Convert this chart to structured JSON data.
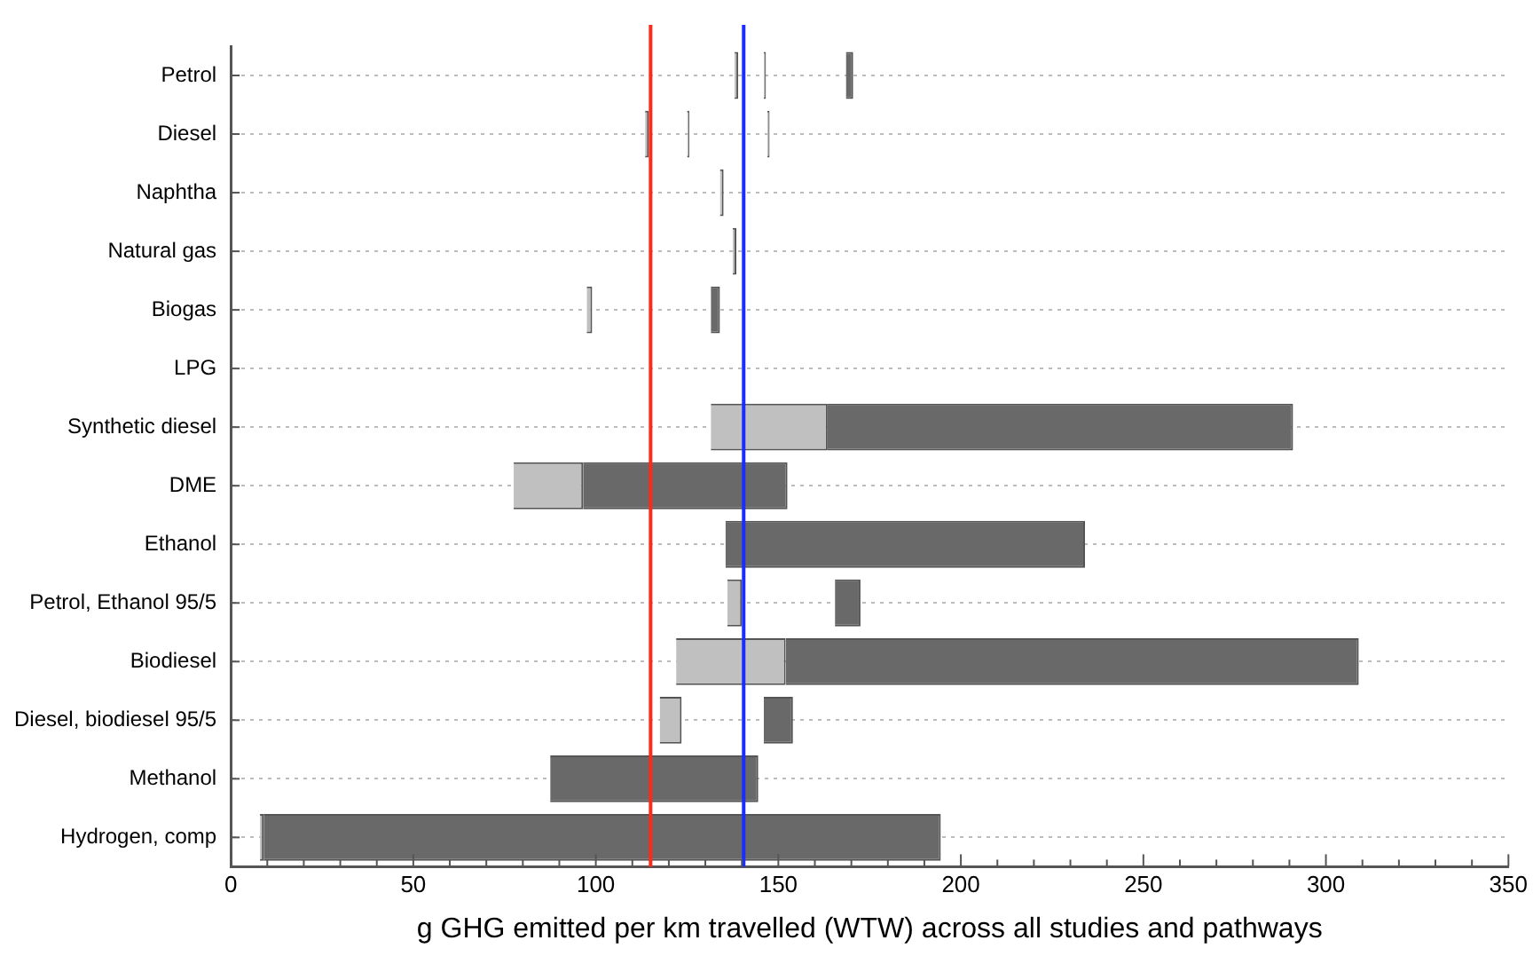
{
  "chart_data": {
    "type": "bar",
    "orientation": "horizontal",
    "xlabel": "g GHG emitted per km travelled (WTW) across all studies and pathways",
    "categories": [
      "Petrol",
      "Diesel",
      "Naphtha",
      "Natural gas",
      "Biogas",
      "LPG",
      "Synthetic diesel",
      "DME",
      "Ethanol",
      "Petrol, Ethanol 95/5",
      "Biodiesel",
      "Diesel, biodiesel 95/5",
      "Methanol",
      "Hydrogen, comp"
    ],
    "series": [
      {
        "color": "#c0c0c0",
        "base": [
          138,
          113.5,
          134,
          137.5,
          97.5,
          null,
          131.5,
          77.5,
          null,
          136,
          122,
          117.5,
          null,
          8
        ],
        "values": [
          1,
          1,
          1,
          1,
          1.5,
          null,
          32,
          19,
          null,
          4,
          30,
          6,
          null,
          1
        ]
      },
      {
        "color": "#c0c0c0",
        "base": [
          146,
          125,
          null,
          null,
          null,
          null,
          null,
          null,
          null,
          null,
          null,
          null,
          null,
          null
        ],
        "values": [
          0.6,
          0.6,
          null,
          null,
          null,
          null,
          null,
          null,
          null,
          null,
          null,
          null,
          null,
          null
        ]
      },
      {
        "color": "#c0c0c0",
        "base": [
          null,
          147,
          null,
          null,
          null,
          null,
          null,
          null,
          null,
          null,
          null,
          null,
          null,
          null
        ],
        "values": [
          null,
          0.6,
          null,
          null,
          null,
          null,
          null,
          null,
          null,
          null,
          null,
          null,
          null,
          null
        ]
      },
      {
        "color": "#696969",
        "base": [
          168.5,
          null,
          null,
          null,
          131.5,
          null,
          163.5,
          96.5,
          135.5,
          165.5,
          152,
          146,
          87.5,
          9
        ],
        "values": [
          2,
          null,
          null,
          null,
          2.5,
          null,
          127.5,
          56,
          98.5,
          7,
          157,
          8,
          57,
          185.5
        ]
      }
    ],
    "xlim": [
      0,
      350
    ],
    "xticks": [
      0,
      {
        "value": 10,
        "label": null
      },
      {
        "value": 20,
        "label": null
      },
      {
        "value": 30,
        "label": null
      },
      {
        "value": 40,
        "label": null
      },
      50,
      {
        "value": 60,
        "label": null
      },
      {
        "value": 70,
        "label": null
      },
      {
        "value": 80,
        "label": null
      },
      {
        "value": 90,
        "label": null
      },
      100,
      {
        "value": 110,
        "label": null
      },
      {
        "value": 120,
        "label": null
      },
      {
        "value": 130,
        "label": null
      },
      {
        "value": 140,
        "label": null
      },
      150,
      {
        "value": 160,
        "label": null
      },
      {
        "value": 170,
        "label": null
      },
      {
        "value": 180,
        "label": null
      },
      {
        "value": 190,
        "label": null
      },
      200,
      {
        "value": 210,
        "label": null
      },
      {
        "value": 220,
        "label": null
      },
      {
        "value": 230,
        "label": null
      },
      {
        "value": 240,
        "label": null
      },
      250,
      {
        "value": 260,
        "label": null
      },
      {
        "value": 270,
        "label": null
      },
      {
        "value": 280,
        "label": null
      },
      {
        "value": 290,
        "label": null
      },
      300,
      {
        "value": 310,
        "label": null
      },
      {
        "value": 320,
        "label": null
      },
      {
        "value": 330,
        "label": null
      },
      {
        "value": 340,
        "label": null
      },
      350
    ],
    "ref_lines": [
      {
        "axis": "x",
        "value": 115,
        "color": "#ff2a1a"
      },
      {
        "axis": "x",
        "value": 140.5,
        "color": "#1a2cff"
      }
    ],
    "grid": "y",
    "line_style": "dotted",
    "legend": false
  }
}
